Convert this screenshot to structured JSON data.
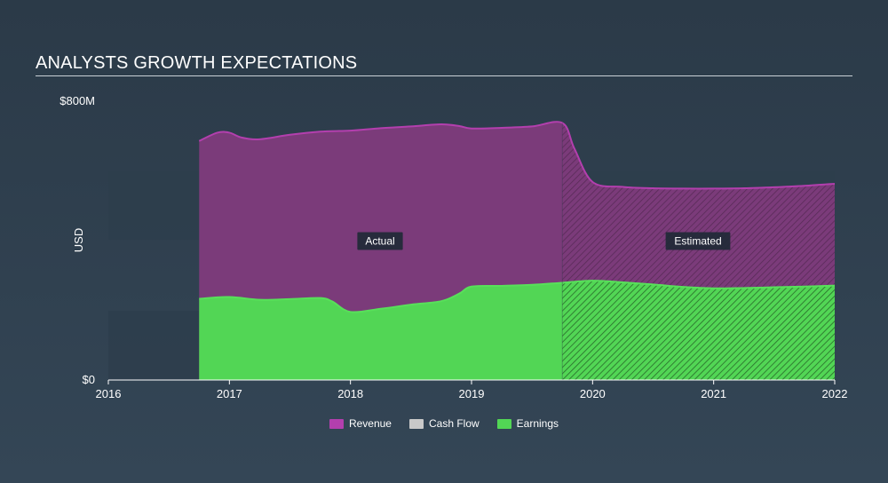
{
  "header": {
    "title": "ANALYSTS GROWTH EXPECTATIONS"
  },
  "chart_data": {
    "type": "area",
    "ylabel": "USD",
    "ylim": [
      0,
      800
    ],
    "y_tick_labels": [
      {
        "value": 800,
        "label": "$800M"
      },
      {
        "value": 0,
        "label": "$0"
      }
    ],
    "xlim": [
      2016.0,
      2022.0
    ],
    "x_tick_labels": [
      "2016",
      "2017",
      "2018",
      "2019",
      "2020",
      "2021",
      "2022"
    ],
    "x_ticks": [
      2016,
      2017,
      2018,
      2019,
      2020,
      2021,
      2022
    ],
    "split_x": 2019.75,
    "region_labels": {
      "actual": "Actual",
      "estimated": "Estimated"
    },
    "colors": {
      "revenue": "#7b3b7a",
      "revenue_line": "#b33fae",
      "earnings": "#52d655",
      "earnings_line": "#58e05a",
      "cash_flow": "#c9c9c9",
      "band": "#2e3e4c"
    },
    "series": [
      {
        "name": "Revenue",
        "x": [
          2016.75,
          2016.9,
          2017.0,
          2017.1,
          2017.25,
          2017.5,
          2017.75,
          2018.0,
          2018.25,
          2018.5,
          2018.75,
          2018.9,
          2019.0,
          2019.25,
          2019.5,
          2019.75,
          2019.85,
          2020.0,
          2020.25,
          2020.5,
          2020.75,
          2021.0,
          2021.25,
          2021.5,
          2021.75,
          2022.0
        ],
        "values": [
          688,
          712,
          712,
          698,
          693,
          706,
          715,
          718,
          725,
          730,
          736,
          731,
          724,
          726,
          730,
          740,
          666,
          570,
          556,
          552,
          551,
          551,
          552,
          555,
          559,
          565
        ]
      },
      {
        "name": "Cash Flow",
        "x": [],
        "values": []
      },
      {
        "name": "Earnings",
        "x": [
          2016.75,
          2017.0,
          2017.25,
          2017.5,
          2017.75,
          2017.85,
          2018.0,
          2018.25,
          2018.5,
          2018.75,
          2018.9,
          2019.0,
          2019.25,
          2019.5,
          2019.75,
          2020.0,
          2020.25,
          2020.5,
          2020.75,
          2021.0,
          2021.25,
          2021.5,
          2021.75,
          2022.0
        ],
        "values": [
          234,
          239,
          231,
          233,
          236,
          226,
          196,
          205,
          217,
          227,
          249,
          269,
          271,
          274,
          280,
          286,
          281,
          275,
          268,
          264,
          265,
          267,
          269,
          272
        ]
      }
    ],
    "legend": {
      "placement": "bottom-center"
    }
  },
  "legend": {
    "revenue": "Revenue",
    "cash_flow": "Cash Flow",
    "earnings": "Earnings"
  }
}
